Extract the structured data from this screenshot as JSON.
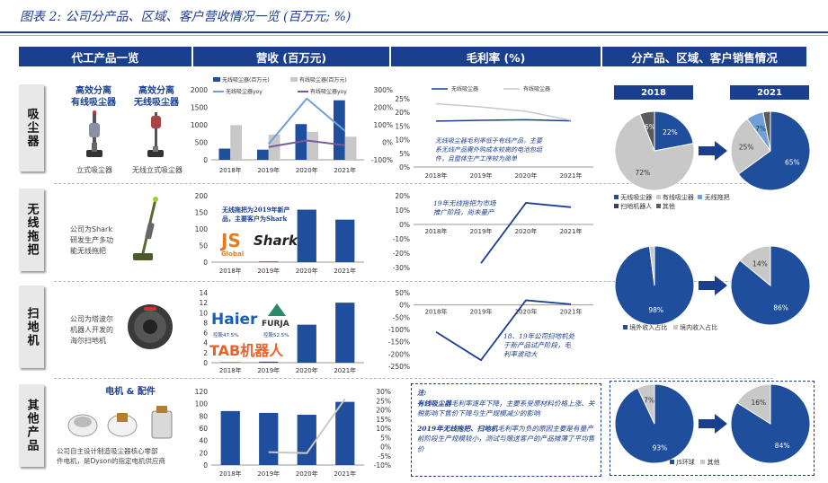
{
  "title": "图表 2: 公司分产品、区域、客户营收情况一览 (百万元; %)",
  "headers": {
    "col1": "代工产品一览",
    "col2": "营收 (百万元)",
    "col3": "毛利率 (%)",
    "col4": "分产品、区域、客户销售情况"
  },
  "colors": {
    "primary": "#1b3f8f",
    "dark": "#1f4e9c",
    "gray": "#c8c8c8",
    "darkgray": "#5a5a5a",
    "lightblue": "#6fa0d8"
  },
  "rows": [
    {
      "label": "吸尘器",
      "products": [
        {
          "title": "高效分离\n有线吸尘器",
          "caption": "立式吸尘器"
        },
        {
          "title": "高效分离\n无线吸尘器",
          "caption": "无线立式吸尘器"
        }
      ]
    },
    {
      "label": "无线拖把",
      "text": "公司为Shark\n研发生产多功\n能无线拖把"
    },
    {
      "label": "扫地机",
      "text": "公司为塔波尔\n机器人开发的\n海尔扫地机"
    },
    {
      "label": "其他产品",
      "title": "电机 & 配件",
      "text": "公司自主设计制造吸尘器核心零部\n件电机，是Dyson的指定电机供应商"
    }
  ],
  "revenue_annotations": {
    "mop": "无线拖把为2019年新产\n品，主要客户为Shark",
    "robot_note1": "控股47.5%",
    "robot_note2": "控股52.5%"
  },
  "logos": {
    "js": "JS",
    "js_sub": "Global",
    "shark": "Shark",
    "haier": "Haier",
    "furja": "FURJA",
    "tab": "TAB机器人"
  },
  "margin_annotations": {
    "vacuum": "无线吸尘器毛利率低于有线产品，主要\n系无线产品需外购成本较高的电池包组\n件，且整体生产工序较为简单",
    "mop": "19年无线拖把为市场\n推广阶段，尚未量产",
    "robot": "18、19年公司扫地机处\n于新产品试产阶段，毛\n利率波动大"
  },
  "note": {
    "head": "注:",
    "p1_bold": "有线吸尘器",
    "p1": "毛利率逐年下降，主要系受原材料价格上涨、关税影响下售价下降与生产规模减少的影响",
    "p2_bold": "2019年无线拖把、扫地机",
    "p2": "毛利率为负的原因主要是有量产前阶段生产规模较小，测试与赠送客户的产品摊薄了平均售价"
  },
  "pies": {
    "years": [
      "2018",
      "2021"
    ],
    "legend1": [
      "无线吸尘器",
      "有线吸尘器",
      "无线拖把",
      "扫地机器人",
      "其他"
    ],
    "legend2": [
      "境外收入占比",
      "境内收入占比"
    ],
    "legend3": [
      "JS环球",
      "其他"
    ]
  },
  "chart_data": [
    {
      "type": "bar",
      "id": "vacuum_revenue",
      "categories": [
        "2018年",
        "2019年",
        "2020年",
        "2021年"
      ],
      "series": [
        {
          "name": "无线吸尘器(百万元)",
          "values": [
            320,
            290,
            1020,
            1700
          ]
        },
        {
          "name": "有线吸尘器(百万元)",
          "values": [
            990,
            720,
            800,
            660
          ]
        }
      ],
      "line_series": [
        {
          "name": "无线吸尘器yoy",
          "values": [
            null,
            -10,
            250,
            65
          ]
        },
        {
          "name": "有线吸尘器yoy",
          "values": [
            null,
            -27,
            10,
            -17
          ]
        }
      ],
      "ylim": [
        0,
        2000
      ],
      "yticks": [
        "2000",
        "1500",
        "1000",
        "500",
        "0"
      ],
      "y2ticks": [
        "300%",
        "200%",
        "100%",
        "0%",
        "-100%"
      ]
    },
    {
      "type": "bar",
      "id": "mop_revenue",
      "categories": [
        "2018年",
        "2019年",
        "2020年",
        "2021年"
      ],
      "values": [
        0,
        2,
        158,
        128
      ],
      "ylim": [
        0,
        200
      ],
      "yticks": [
        "200",
        "150",
        "100",
        "50",
        "0"
      ]
    },
    {
      "type": "bar",
      "id": "robot_revenue",
      "categories": [
        "2018年",
        "2019年",
        "2020年",
        "2021年"
      ],
      "values": [
        0.1,
        0.2,
        7.6,
        12
      ],
      "ylim": [
        0,
        14
      ],
      "yticks": [
        "14",
        "12",
        "10",
        "8",
        "6",
        "4",
        "2",
        "0"
      ]
    },
    {
      "type": "bar",
      "id": "other_revenue",
      "categories": [
        "2018年",
        "2019年",
        "2020年",
        "2021年"
      ],
      "values": [
        88,
        85,
        82,
        103
      ],
      "line_values": [
        null,
        -3,
        -3.5,
        26
      ],
      "ylim": [
        0,
        120
      ],
      "yticks": [
        "120",
        "100",
        "80",
        "60",
        "40",
        "20",
        "0"
      ],
      "y2ticks": [
        "30%",
        "25%",
        "20%",
        "15%",
        "10%",
        "5%",
        "0%",
        "-5%",
        "-10%"
      ]
    },
    {
      "type": "line",
      "id": "vacuum_margin",
      "categories": [
        "2018年",
        "2019年",
        "2020年",
        "2021年"
      ],
      "series": [
        {
          "name": "无线吸尘器",
          "values": [
            16.8,
            17.1,
            17.3,
            16.9
          ]
        },
        {
          "name": "有线吸尘器",
          "values": [
            23.2,
            22.0,
            20.4,
            17.1
          ]
        }
      ],
      "ylim": [
        0,
        25
      ],
      "yticks": [
        "25%",
        "20%",
        "15%",
        "10%",
        "5%",
        "0%"
      ]
    },
    {
      "type": "line",
      "id": "mop_margin",
      "categories": [
        "2018年",
        "2019年",
        "2020年",
        "2021年"
      ],
      "values": [
        null,
        -27,
        15,
        12
      ],
      "ylim": [
        -30,
        20
      ],
      "yticks": [
        "20%",
        "10%",
        "0%",
        "-10%",
        "-20%",
        "-30%"
      ]
    },
    {
      "type": "line",
      "id": "robot_margin",
      "categories": [
        "2018年",
        "2019年",
        "2020年",
        "2021年"
      ],
      "values": [
        -110,
        -225,
        19,
        3
      ],
      "ylim": [
        -250,
        50
      ],
      "yticks": [
        "50%",
        "0%",
        "-50%",
        "-100%",
        "-150%",
        "-200%",
        "-250%"
      ]
    },
    {
      "type": "pie",
      "id": "pie_product_2018",
      "labels": [
        "无线吸尘器",
        "有线吸尘器",
        "其他"
      ],
      "values": [
        22,
        72,
        6
      ]
    },
    {
      "type": "pie",
      "id": "pie_product_2021",
      "labels": [
        "无线吸尘器",
        "有线吸尘器",
        "无线拖把",
        "其他"
      ],
      "values": [
        65,
        25,
        7,
        3
      ]
    },
    {
      "type": "pie",
      "id": "pie_region_2018",
      "labels": [
        "境外收入占比",
        "境内收入占比"
      ],
      "values": [
        98,
        2
      ]
    },
    {
      "type": "pie",
      "id": "pie_region_2021",
      "labels": [
        "境外收入占比",
        "境内收入占比"
      ],
      "values": [
        86,
        14
      ]
    },
    {
      "type": "pie",
      "id": "pie_client_2018",
      "labels": [
        "JS环球",
        "其他"
      ],
      "values": [
        93,
        7
      ]
    },
    {
      "type": "pie",
      "id": "pie_client_2021",
      "labels": [
        "JS环球",
        "其他"
      ],
      "values": [
        84,
        16
      ]
    }
  ]
}
